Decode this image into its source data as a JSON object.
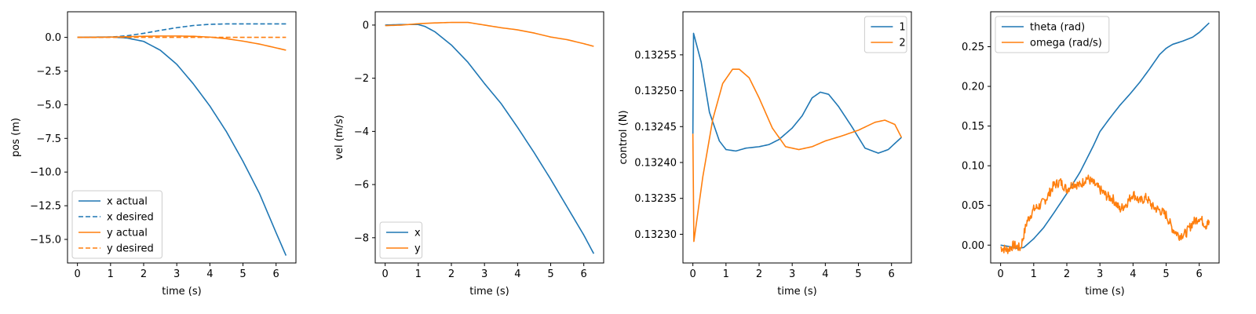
{
  "colors": {
    "blue": "#1f77b4",
    "orange": "#ff7f0e"
  },
  "chart_data": [
    {
      "type": "line",
      "xlabel": "time (s)",
      "ylabel": "pos (m)",
      "xlim": [
        -0.3,
        6.6
      ],
      "ylim": [
        -16.75,
        1.9
      ],
      "xticks": [
        0,
        1,
        2,
        3,
        4,
        5,
        6
      ],
      "xticklabels": [
        "0",
        "1",
        "2",
        "3",
        "4",
        "5",
        "6"
      ],
      "yticks": [
        0.0,
        -2.5,
        -5.0,
        -7.5,
        -10.0,
        -12.5,
        -15.0
      ],
      "yticklabels": [
        "0.0",
        "−2.5",
        "−5.0",
        "−7.5",
        "−10.0",
        "−12.5",
        "−15.0"
      ],
      "legend": "lower-left",
      "series": [
        {
          "name": "x actual",
          "color": "#1f77b4",
          "dash": "solid",
          "x": [
            0,
            0.5,
            1.0,
            1.5,
            2.0,
            2.5,
            3.0,
            3.5,
            4.0,
            4.5,
            5.0,
            5.5,
            6.0,
            6.3
          ],
          "y": [
            0,
            0.02,
            0.03,
            -0.05,
            -0.3,
            -0.95,
            -2.0,
            -3.45,
            -5.1,
            -7.0,
            -9.2,
            -11.6,
            -14.5,
            -16.2
          ]
        },
        {
          "name": "x desired",
          "color": "#1f77b4",
          "dash": "dashed",
          "x": [
            0,
            0.5,
            1.0,
            1.5,
            2.0,
            2.5,
            3.0,
            3.5,
            4.0,
            4.5,
            5.0,
            5.5,
            6.0,
            6.3
          ],
          "y": [
            0,
            0.0,
            0.02,
            0.12,
            0.3,
            0.52,
            0.72,
            0.88,
            0.97,
            1.0,
            1.0,
            1.0,
            1.0,
            1.0
          ]
        },
        {
          "name": "y actual",
          "color": "#ff7f0e",
          "dash": "solid",
          "x": [
            0,
            0.5,
            1.0,
            1.5,
            2.0,
            2.5,
            3.0,
            3.5,
            4.0,
            4.5,
            5.0,
            5.5,
            6.0,
            6.3
          ],
          "y": [
            0,
            0.0,
            0.02,
            0.05,
            0.08,
            0.1,
            0.1,
            0.08,
            0.02,
            -0.1,
            -0.28,
            -0.5,
            -0.78,
            -0.95
          ]
        },
        {
          "name": "y desired",
          "color": "#ff7f0e",
          "dash": "dashed",
          "x": [
            0,
            6.3
          ],
          "y": [
            0,
            0
          ]
        }
      ]
    },
    {
      "type": "line",
      "xlabel": "time (s)",
      "ylabel": "vel (m/s)",
      "xlim": [
        -0.3,
        6.6
      ],
      "ylim": [
        -8.95,
        0.5
      ],
      "xticks": [
        0,
        1,
        2,
        3,
        4,
        5,
        6
      ],
      "xticklabels": [
        "0",
        "1",
        "2",
        "3",
        "4",
        "5",
        "6"
      ],
      "yticks": [
        0,
        -2,
        -4,
        -6,
        -8
      ],
      "yticklabels": [
        "0",
        "−2",
        "−4",
        "−6",
        "−8"
      ],
      "legend": "lower-left",
      "series": [
        {
          "name": "x",
          "color": "#1f77b4",
          "dash": "solid",
          "x": [
            0,
            0.5,
            1.0,
            1.2,
            1.5,
            2.0,
            2.5,
            3.0,
            3.5,
            4.0,
            4.5,
            5.0,
            5.5,
            6.0,
            6.3
          ],
          "y": [
            0,
            0.02,
            0.02,
            -0.05,
            -0.25,
            -0.75,
            -1.4,
            -2.2,
            -2.95,
            -3.85,
            -4.8,
            -5.8,
            -6.85,
            -7.9,
            -8.6
          ]
        },
        {
          "name": "y",
          "color": "#ff7f0e",
          "dash": "solid",
          "x": [
            0,
            0.5,
            1.0,
            1.5,
            2.0,
            2.5,
            3.0,
            3.5,
            4.0,
            4.5,
            5.0,
            5.5,
            6.0,
            6.3
          ],
          "y": [
            -0.02,
            0.0,
            0.05,
            0.08,
            0.1,
            0.1,
            0.0,
            -0.1,
            -0.18,
            -0.3,
            -0.45,
            -0.55,
            -0.7,
            -0.8
          ]
        }
      ]
    },
    {
      "type": "line",
      "xlabel": "time (s)",
      "ylabel": "control (N)",
      "xlim": [
        -0.3,
        6.6
      ],
      "ylim": [
        0.13226,
        0.13261
      ],
      "xticks": [
        0,
        1,
        2,
        3,
        4,
        5,
        6
      ],
      "xticklabels": [
        "0",
        "1",
        "2",
        "3",
        "4",
        "5",
        "6"
      ],
      "yticks": [
        0.1323,
        0.13235,
        0.1324,
        0.13245,
        0.1325,
        0.13255
      ],
      "yticklabels": [
        "0.13230",
        "0.13235",
        "0.13240",
        "0.13245",
        "0.13250",
        "0.13255"
      ],
      "legend": "top-right",
      "series": [
        {
          "name": "1",
          "color": "#1f77b4",
          "dash": "solid",
          "x": [
            0,
            0.02,
            0.25,
            0.5,
            0.8,
            1.0,
            1.3,
            1.6,
            2.0,
            2.3,
            2.6,
            3.0,
            3.3,
            3.6,
            3.85,
            4.1,
            4.4,
            4.8,
            5.2,
            5.6,
            5.9,
            6.3
          ],
          "y": [
            0.13244,
            0.13258,
            0.13254,
            0.13247,
            0.13243,
            0.132418,
            0.132416,
            0.13242,
            0.132422,
            0.132425,
            0.132432,
            0.132448,
            0.132465,
            0.13249,
            0.132498,
            0.132495,
            0.132478,
            0.13245,
            0.13242,
            0.132413,
            0.132418,
            0.132435
          ]
        },
        {
          "name": "2",
          "color": "#ff7f0e",
          "dash": "solid",
          "x": [
            0,
            0.03,
            0.3,
            0.6,
            0.9,
            1.2,
            1.4,
            1.7,
            2.0,
            2.4,
            2.8,
            3.2,
            3.6,
            4.0,
            4.5,
            5.0,
            5.5,
            5.8,
            6.1,
            6.3
          ],
          "y": [
            0.13244,
            0.13229,
            0.13238,
            0.13246,
            0.13251,
            0.13253,
            0.13253,
            0.132518,
            0.13249,
            0.132448,
            0.132422,
            0.132418,
            0.132422,
            0.13243,
            0.132437,
            0.132445,
            0.132456,
            0.132459,
            0.132453,
            0.132435
          ]
        }
      ]
    },
    {
      "type": "line",
      "xlabel": "time (s)",
      "ylabel": "",
      "xlim": [
        -0.3,
        6.6
      ],
      "ylim": [
        -0.0225,
        0.294
      ],
      "xticks": [
        0,
        1,
        2,
        3,
        4,
        5,
        6
      ],
      "xticklabels": [
        "0",
        "1",
        "2",
        "3",
        "4",
        "5",
        "6"
      ],
      "yticks": [
        0.0,
        0.05,
        0.1,
        0.15,
        0.2,
        0.25
      ],
      "yticklabels": [
        "0.00",
        "0.05",
        "0.10",
        "0.15",
        "0.20",
        "0.25"
      ],
      "legend": "top-left",
      "series": [
        {
          "name": "theta (rad)",
          "color": "#1f77b4",
          "dash": "solid",
          "x": [
            0,
            0.3,
            0.5,
            0.7,
            1.0,
            1.3,
            1.6,
            2.0,
            2.4,
            2.8,
            3.0,
            3.3,
            3.6,
            3.9,
            4.2,
            4.5,
            4.8,
            5.0,
            5.2,
            5.5,
            5.8,
            6.0,
            6.3
          ],
          "y": [
            0.0,
            -0.002,
            -0.004,
            -0.003,
            0.008,
            0.022,
            0.04,
            0.065,
            0.092,
            0.125,
            0.143,
            0.16,
            0.176,
            0.19,
            0.205,
            0.222,
            0.24,
            0.248,
            0.253,
            0.257,
            0.262,
            0.268,
            0.28
          ]
        },
        {
          "name": "omega (rad/s)",
          "color": "#ff7f0e",
          "dash": "solid",
          "noisy": true,
          "x": [
            0,
            0.2,
            0.4,
            0.6,
            0.8,
            1.0,
            1.2,
            1.4,
            1.6,
            1.8,
            2.0,
            2.2,
            2.4,
            2.6,
            2.8,
            3.0,
            3.2,
            3.4,
            3.6,
            3.8,
            4.0,
            4.2,
            4.4,
            4.6,
            4.8,
            5.0,
            5.2,
            5.4,
            5.6,
            5.8,
            6.0,
            6.2,
            6.3
          ],
          "y": [
            -0.003,
            -0.006,
            0.0,
            -0.004,
            0.03,
            0.045,
            0.05,
            0.06,
            0.075,
            0.08,
            0.07,
            0.078,
            0.075,
            0.085,
            0.078,
            0.07,
            0.062,
            0.058,
            0.045,
            0.052,
            0.065,
            0.055,
            0.06,
            0.048,
            0.044,
            0.038,
            0.02,
            0.012,
            0.015,
            0.028,
            0.035,
            0.025,
            0.028
          ]
        }
      ]
    }
  ]
}
